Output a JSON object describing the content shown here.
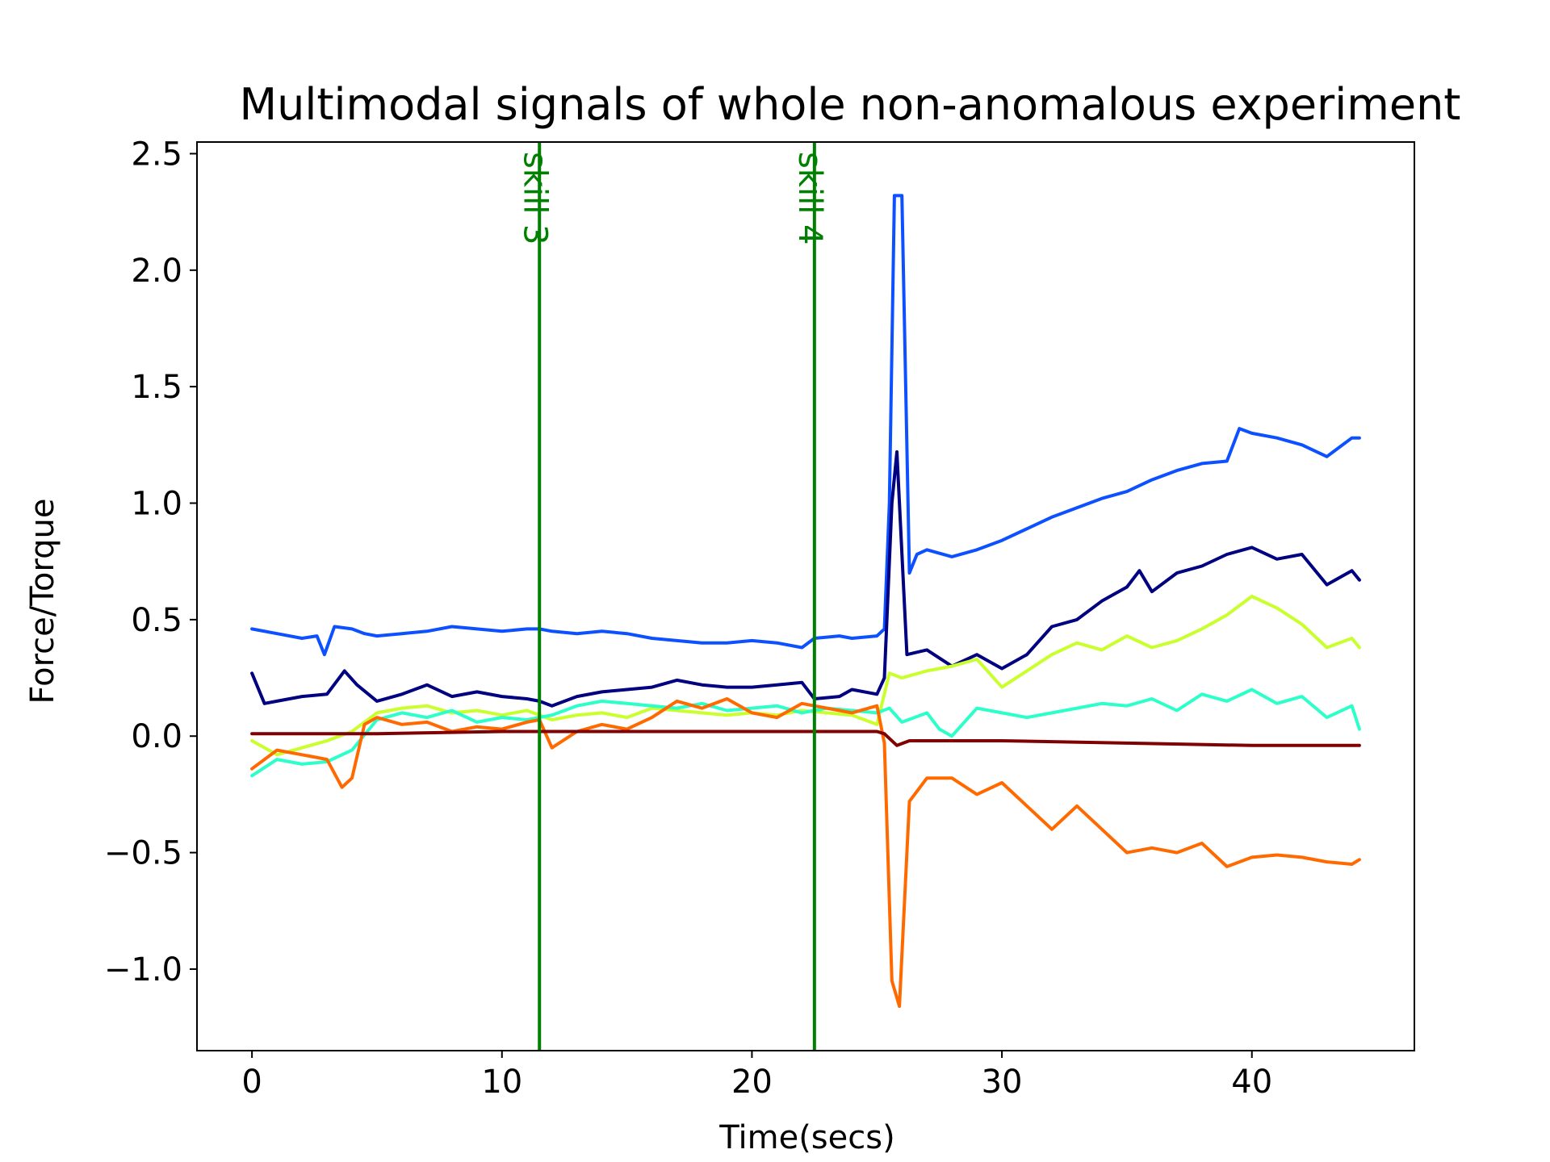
{
  "chart_data": {
    "type": "line",
    "title": "Multimodal signals of whole non-anomalous experiment",
    "xlabel": "Time(secs)",
    "ylabel": "Force/Torque",
    "xlim": [
      -2.2,
      46.5
    ],
    "ylim": [
      -1.35,
      2.55
    ],
    "xticks": [
      0,
      10,
      20,
      30,
      40
    ],
    "xtick_labels": [
      "0",
      "10",
      "20",
      "30",
      "40"
    ],
    "yticks": [
      -1.0,
      -0.5,
      0.0,
      0.5,
      1.0,
      1.5,
      2.0,
      2.5
    ],
    "ytick_labels": [
      "−1.0",
      "−0.5",
      "0.0",
      "0.5",
      "1.0",
      "1.5",
      "2.0",
      "2.5"
    ],
    "grid": false,
    "legend": "none",
    "vlines": [
      {
        "x": 11.5,
        "label": "skill 3",
        "color": "#008000"
      },
      {
        "x": 22.5,
        "label": "skill 4",
        "color": "#008000"
      }
    ],
    "series": [
      {
        "color": "#0d50ff",
        "points": [
          [
            0,
            0.46
          ],
          [
            1,
            0.44
          ],
          [
            2,
            0.42
          ],
          [
            2.6,
            0.43
          ],
          [
            2.9,
            0.35
          ],
          [
            3.3,
            0.47
          ],
          [
            4,
            0.46
          ],
          [
            4.5,
            0.44
          ],
          [
            5,
            0.43
          ],
          [
            6,
            0.44
          ],
          [
            7,
            0.45
          ],
          [
            8,
            0.47
          ],
          [
            9,
            0.46
          ],
          [
            10,
            0.45
          ],
          [
            11,
            0.46
          ],
          [
            11.5,
            0.46
          ],
          [
            12,
            0.45
          ],
          [
            13,
            0.44
          ],
          [
            14,
            0.45
          ],
          [
            15,
            0.44
          ],
          [
            16,
            0.42
          ],
          [
            17,
            0.41
          ],
          [
            18,
            0.4
          ],
          [
            19,
            0.4
          ],
          [
            20,
            0.41
          ],
          [
            21,
            0.4
          ],
          [
            22,
            0.38
          ],
          [
            22.5,
            0.42
          ],
          [
            23.5,
            0.43
          ],
          [
            24,
            0.42
          ],
          [
            25,
            0.43
          ],
          [
            25.3,
            0.46
          ],
          [
            25.5,
            1.0
          ],
          [
            25.7,
            2.32
          ],
          [
            26,
            2.32
          ],
          [
            26.3,
            0.7
          ],
          [
            26.6,
            0.78
          ],
          [
            27,
            0.8
          ],
          [
            28,
            0.77
          ],
          [
            29,
            0.8
          ],
          [
            30,
            0.84
          ],
          [
            31,
            0.89
          ],
          [
            32,
            0.94
          ],
          [
            33,
            0.98
          ],
          [
            34,
            1.02
          ],
          [
            35,
            1.05
          ],
          [
            36,
            1.1
          ],
          [
            37,
            1.14
          ],
          [
            38,
            1.17
          ],
          [
            39,
            1.18
          ],
          [
            39.5,
            1.32
          ],
          [
            40,
            1.3
          ],
          [
            41,
            1.28
          ],
          [
            42,
            1.25
          ],
          [
            43,
            1.2
          ],
          [
            44,
            1.28
          ],
          [
            44.3,
            1.28
          ]
        ]
      },
      {
        "color": "#000080",
        "points": [
          [
            0,
            0.27
          ],
          [
            0.5,
            0.14
          ],
          [
            1,
            0.15
          ],
          [
            2,
            0.17
          ],
          [
            3,
            0.18
          ],
          [
            3.7,
            0.28
          ],
          [
            4.2,
            0.22
          ],
          [
            5,
            0.15
          ],
          [
            6,
            0.18
          ],
          [
            7,
            0.22
          ],
          [
            8,
            0.17
          ],
          [
            9,
            0.19
          ],
          [
            10,
            0.17
          ],
          [
            11,
            0.16
          ],
          [
            11.5,
            0.15
          ],
          [
            12,
            0.13
          ],
          [
            13,
            0.17
          ],
          [
            14,
            0.19
          ],
          [
            15,
            0.2
          ],
          [
            16,
            0.21
          ],
          [
            17,
            0.24
          ],
          [
            18,
            0.22
          ],
          [
            19,
            0.21
          ],
          [
            20,
            0.21
          ],
          [
            21,
            0.22
          ],
          [
            22,
            0.23
          ],
          [
            22.5,
            0.16
          ],
          [
            23.5,
            0.17
          ],
          [
            24,
            0.2
          ],
          [
            25,
            0.18
          ],
          [
            25.3,
            0.25
          ],
          [
            25.6,
            1.0
          ],
          [
            25.8,
            1.22
          ],
          [
            26.2,
            0.35
          ],
          [
            27,
            0.37
          ],
          [
            28,
            0.3
          ],
          [
            29,
            0.35
          ],
          [
            30,
            0.29
          ],
          [
            31,
            0.35
          ],
          [
            32,
            0.47
          ],
          [
            33,
            0.5
          ],
          [
            34,
            0.58
          ],
          [
            35,
            0.64
          ],
          [
            35.5,
            0.71
          ],
          [
            36,
            0.62
          ],
          [
            37,
            0.7
          ],
          [
            38,
            0.73
          ],
          [
            39,
            0.78
          ],
          [
            40,
            0.81
          ],
          [
            41,
            0.76
          ],
          [
            42,
            0.78
          ],
          [
            43,
            0.65
          ],
          [
            44,
            0.71
          ],
          [
            44.3,
            0.67
          ]
        ]
      },
      {
        "color": "#caff2e",
        "points": [
          [
            0,
            -0.02
          ],
          [
            1,
            -0.08
          ],
          [
            2,
            -0.05
          ],
          [
            3,
            -0.02
          ],
          [
            4,
            0.02
          ],
          [
            5,
            0.1
          ],
          [
            6,
            0.12
          ],
          [
            7,
            0.13
          ],
          [
            8,
            0.1
          ],
          [
            9,
            0.11
          ],
          [
            10,
            0.09
          ],
          [
            11,
            0.11
          ],
          [
            12,
            0.07
          ],
          [
            13,
            0.09
          ],
          [
            14,
            0.1
          ],
          [
            15,
            0.08
          ],
          [
            16,
            0.12
          ],
          [
            17,
            0.11
          ],
          [
            18,
            0.1
          ],
          [
            19,
            0.09
          ],
          [
            20,
            0.1
          ],
          [
            21,
            0.09
          ],
          [
            22,
            0.11
          ],
          [
            23,
            0.1
          ],
          [
            24,
            0.09
          ],
          [
            25,
            0.05
          ],
          [
            25.5,
            0.27
          ],
          [
            26,
            0.25
          ],
          [
            27,
            0.28
          ],
          [
            28,
            0.3
          ],
          [
            29,
            0.33
          ],
          [
            30,
            0.21
          ],
          [
            31,
            0.28
          ],
          [
            32,
            0.35
          ],
          [
            33,
            0.4
          ],
          [
            34,
            0.37
          ],
          [
            35,
            0.43
          ],
          [
            36,
            0.38
          ],
          [
            37,
            0.41
          ],
          [
            38,
            0.46
          ],
          [
            39,
            0.52
          ],
          [
            40,
            0.6
          ],
          [
            41,
            0.55
          ],
          [
            42,
            0.48
          ],
          [
            43,
            0.38
          ],
          [
            44,
            0.42
          ],
          [
            44.3,
            0.38
          ]
        ]
      },
      {
        "color": "#2cffca",
        "points": [
          [
            0,
            -0.17
          ],
          [
            1,
            -0.1
          ],
          [
            2,
            -0.12
          ],
          [
            3,
            -0.11
          ],
          [
            4,
            -0.06
          ],
          [
            5,
            0.07
          ],
          [
            6,
            0.1
          ],
          [
            7,
            0.08
          ],
          [
            8,
            0.11
          ],
          [
            9,
            0.06
          ],
          [
            10,
            0.08
          ],
          [
            11,
            0.07
          ],
          [
            12,
            0.09
          ],
          [
            13,
            0.13
          ],
          [
            14,
            0.15
          ],
          [
            15,
            0.14
          ],
          [
            16,
            0.13
          ],
          [
            17,
            0.12
          ],
          [
            18,
            0.14
          ],
          [
            19,
            0.11
          ],
          [
            20,
            0.12
          ],
          [
            21,
            0.13
          ],
          [
            22,
            0.1
          ],
          [
            23,
            0.12
          ],
          [
            24,
            0.11
          ],
          [
            25,
            0.1
          ],
          [
            25.5,
            0.12
          ],
          [
            26,
            0.06
          ],
          [
            27,
            0.1
          ],
          [
            27.5,
            0.03
          ],
          [
            28,
            0.0
          ],
          [
            29,
            0.12
          ],
          [
            30,
            0.1
          ],
          [
            31,
            0.08
          ],
          [
            32,
            0.1
          ],
          [
            33,
            0.12
          ],
          [
            34,
            0.14
          ],
          [
            35,
            0.13
          ],
          [
            36,
            0.16
          ],
          [
            37,
            0.11
          ],
          [
            38,
            0.18
          ],
          [
            39,
            0.15
          ],
          [
            40,
            0.2
          ],
          [
            41,
            0.14
          ],
          [
            42,
            0.17
          ],
          [
            43,
            0.08
          ],
          [
            44,
            0.13
          ],
          [
            44.3,
            0.03
          ]
        ]
      },
      {
        "color": "#ff6a00",
        "points": [
          [
            0,
            -0.14
          ],
          [
            1,
            -0.06
          ],
          [
            2,
            -0.08
          ],
          [
            3,
            -0.1
          ],
          [
            3.6,
            -0.22
          ],
          [
            4,
            -0.18
          ],
          [
            4.5,
            0.05
          ],
          [
            5,
            0.08
          ],
          [
            6,
            0.05
          ],
          [
            7,
            0.06
          ],
          [
            8,
            0.02
          ],
          [
            9,
            0.04
          ],
          [
            10,
            0.03
          ],
          [
            11,
            0.06
          ],
          [
            11.5,
            0.07
          ],
          [
            12,
            -0.05
          ],
          [
            13,
            0.02
          ],
          [
            14,
            0.05
          ],
          [
            15,
            0.03
          ],
          [
            16,
            0.08
          ],
          [
            17,
            0.15
          ],
          [
            18,
            0.12
          ],
          [
            19,
            0.16
          ],
          [
            20,
            0.1
          ],
          [
            21,
            0.08
          ],
          [
            22,
            0.14
          ],
          [
            23,
            0.12
          ],
          [
            24,
            0.1
          ],
          [
            25,
            0.13
          ],
          [
            25.3,
            -0.03
          ],
          [
            25.6,
            -1.05
          ],
          [
            25.9,
            -1.16
          ],
          [
            26.3,
            -0.28
          ],
          [
            27,
            -0.18
          ],
          [
            28,
            -0.18
          ],
          [
            29,
            -0.25
          ],
          [
            30,
            -0.2
          ],
          [
            31,
            -0.3
          ],
          [
            32,
            -0.4
          ],
          [
            33,
            -0.3
          ],
          [
            34,
            -0.4
          ],
          [
            35,
            -0.5
          ],
          [
            36,
            -0.48
          ],
          [
            37,
            -0.5
          ],
          [
            38,
            -0.46
          ],
          [
            39,
            -0.56
          ],
          [
            40,
            -0.52
          ],
          [
            41,
            -0.51
          ],
          [
            42,
            -0.52
          ],
          [
            43,
            -0.54
          ],
          [
            44,
            -0.55
          ],
          [
            44.3,
            -0.53
          ]
        ]
      },
      {
        "color": "#7f0000",
        "points": [
          [
            0,
            0.01
          ],
          [
            5,
            0.01
          ],
          [
            10,
            0.02
          ],
          [
            15,
            0.02
          ],
          [
            20,
            0.02
          ],
          [
            25,
            0.02
          ],
          [
            25.3,
            0.01
          ],
          [
            25.8,
            -0.04
          ],
          [
            26.3,
            -0.02
          ],
          [
            30,
            -0.02
          ],
          [
            35,
            -0.03
          ],
          [
            40,
            -0.04
          ],
          [
            44.3,
            -0.04
          ]
        ]
      }
    ]
  }
}
